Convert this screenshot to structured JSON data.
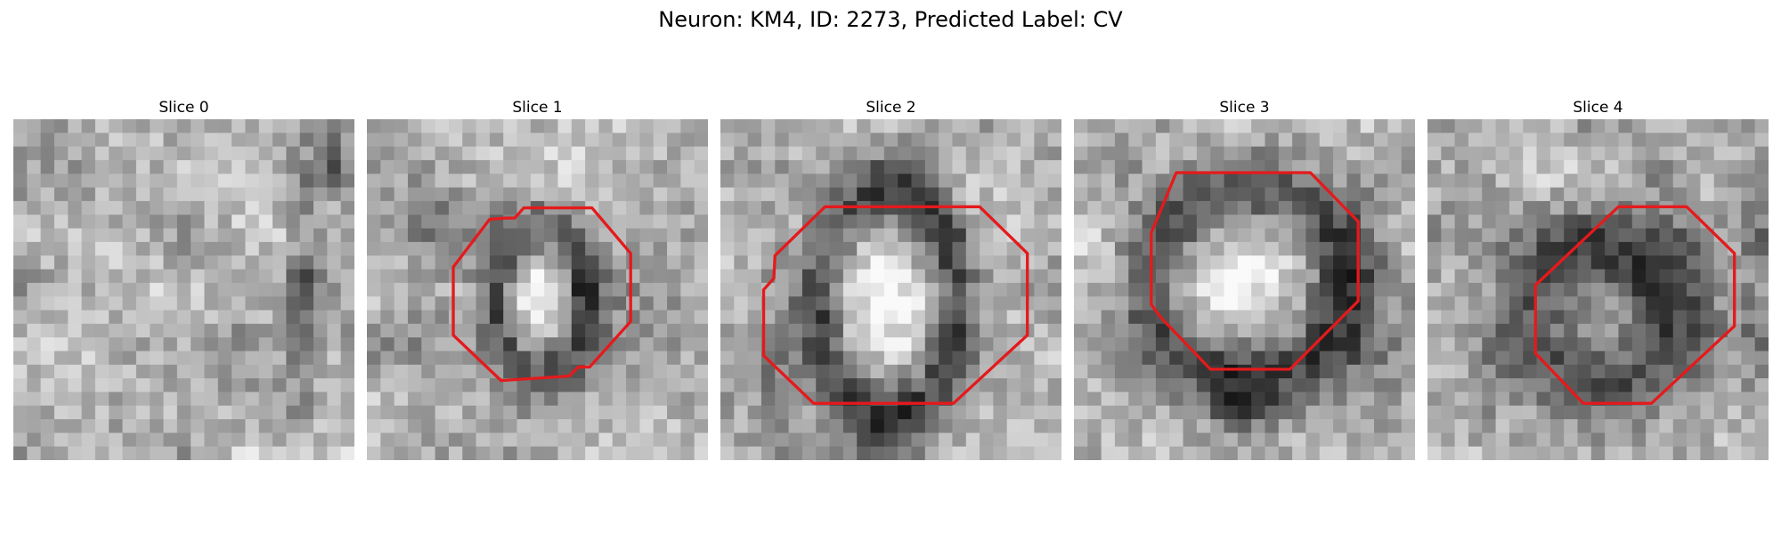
{
  "figure": {
    "title": "Neuron: KM4, ID: 2273, Predicted Label: CV",
    "contour_color": "#e41a1c"
  },
  "slices": [
    {
      "label": "Slice 0"
    },
    {
      "label": "Slice 1"
    },
    {
      "label": "Slice 2"
    },
    {
      "label": "Slice 3"
    },
    {
      "label": "Slice 4"
    }
  ]
}
